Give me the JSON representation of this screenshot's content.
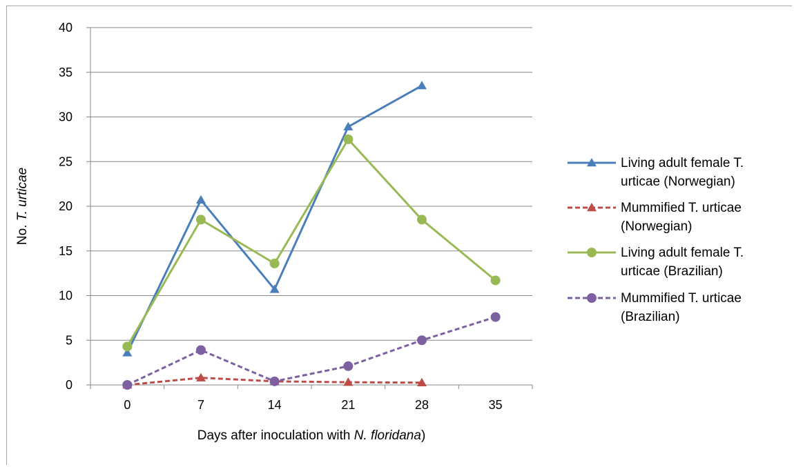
{
  "chart_data": {
    "type": "line",
    "title": "",
    "xlabel_parts": [
      {
        "text": "Days after inoculation with ",
        "italic": false
      },
      {
        "text": "N. floridana",
        "italic": true
      },
      {
        "text": ")",
        "italic": false
      }
    ],
    "ylabel_parts": [
      {
        "text": "No. ",
        "italic": false
      },
      {
        "text": "T. urticae",
        "italic": true
      }
    ],
    "categories": [
      "0",
      "7",
      "14",
      "21",
      "28",
      "35"
    ],
    "ylim": [
      0,
      40
    ],
    "yticks": [
      "0",
      "5",
      "10",
      "15",
      "20",
      "25",
      "30",
      "35",
      "40"
    ],
    "grid": true,
    "legend_position": "right",
    "series": [
      {
        "name": "Living adult female T. urticae (Norwegian)",
        "legend_lines": [
          "Living adult female T.",
          "urticae (Norwegian)"
        ],
        "values": [
          3.6,
          20.7,
          10.7,
          28.9,
          33.5,
          null
        ],
        "color": "#4a7ebb",
        "dashed": false,
        "marker": "triangle"
      },
      {
        "name": "Mummified T. urticae (Norwegian)",
        "legend_lines": [
          "Mummified T. urticae",
          "(Norwegian)"
        ],
        "values": [
          0,
          0.8,
          0.4,
          0.3,
          0.25,
          null
        ],
        "color": "#be4b48",
        "dashed": true,
        "marker": "triangle"
      },
      {
        "name": "Living adult female T. urticae (Brazilian)",
        "legend_lines": [
          "Living adult female T.",
          "urticae (Brazilian)"
        ],
        "values": [
          4.3,
          18.5,
          13.6,
          27.5,
          18.5,
          11.7
        ],
        "color": "#98b954",
        "dashed": false,
        "marker": "circle"
      },
      {
        "name": "Mummified T. urticae (Brazilian)",
        "legend_lines": [
          "Mummified T. urticae",
          "(Brazilian)"
        ],
        "values": [
          0,
          3.9,
          0.4,
          2.1,
          5.0,
          7.6
        ],
        "color": "#7d60a0",
        "dashed": true,
        "marker": "circle"
      }
    ]
  }
}
